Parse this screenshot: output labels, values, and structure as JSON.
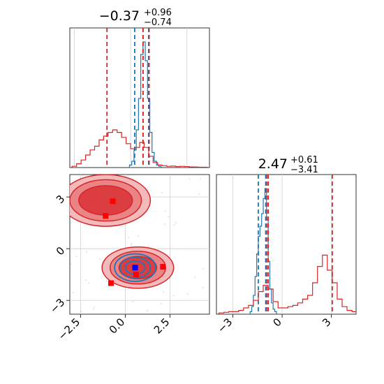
{
  "chart_data": [
    {
      "panel": "top-left",
      "type": "histogram",
      "title": {
        "main": "−0.37",
        "sup": "+0.96",
        "sub": "−0.74"
      },
      "xlim": [
        -2.7,
        3.5
      ],
      "colors": {
        "blue": "#1f77b4",
        "red": "#d62728"
      },
      "series": [
        {
          "color": "blue",
          "bins": [
            [
              0.0,
              0.02
            ],
            [
              0.1,
              0.05
            ],
            [
              0.2,
              0.14
            ],
            [
              0.3,
              0.3
            ],
            [
              0.4,
              0.55
            ],
            [
              0.5,
              0.9
            ],
            [
              0.6,
              1.0
            ],
            [
              0.7,
              0.85
            ],
            [
              0.8,
              0.55
            ],
            [
              0.9,
              0.28
            ],
            [
              1.0,
              0.12
            ],
            [
              1.1,
              0.05
            ],
            [
              1.2,
              0.02
            ],
            [
              1.3,
              0.01
            ]
          ],
          "quantiles": [
            0.18,
            0.55,
            0.8
          ]
        },
        {
          "color": "red",
          "bins": [
            [
              -2.5,
              0.01
            ],
            [
              -2.3,
              0.03
            ],
            [
              -2.1,
              0.06
            ],
            [
              -1.9,
              0.1
            ],
            [
              -1.7,
              0.14
            ],
            [
              -1.5,
              0.17
            ],
            [
              -1.3,
              0.22
            ],
            [
              -1.1,
              0.25
            ],
            [
              -0.9,
              0.28
            ],
            [
              -0.7,
              0.3
            ],
            [
              -0.5,
              0.28
            ],
            [
              -0.3,
              0.24
            ],
            [
              -0.1,
              0.19
            ],
            [
              0.1,
              0.15
            ],
            [
              0.3,
              0.16
            ],
            [
              0.5,
              0.2
            ],
            [
              0.7,
              0.16
            ],
            [
              0.9,
              0.09
            ],
            [
              1.1,
              0.04
            ],
            [
              1.3,
              0.02
            ],
            [
              1.5,
              0.015
            ],
            [
              1.7,
              0.01
            ],
            [
              1.9,
              0.012
            ],
            [
              2.1,
              0.008
            ],
            [
              2.3,
              0.01
            ],
            [
              2.5,
              0.008
            ],
            [
              2.7,
              0.005
            ],
            [
              2.9,
              0.004
            ],
            [
              3.1,
              0.003
            ],
            [
              3.3,
              0.003
            ]
          ],
          "quantiles": [
            -1.05,
            0.55,
            0.82
          ]
        }
      ]
    },
    {
      "panel": "bottom-right",
      "type": "histogram",
      "title": {
        "main": "2.47",
        "sup": "+0.61",
        "sub": "−3.41"
      },
      "xlim": [
        -4.0,
        4.5
      ],
      "xticks": [
        "−3",
        "0",
        "3"
      ],
      "series": [
        {
          "color": "blue",
          "bins": [
            [
              -1.9,
              0.02
            ],
            [
              -1.8,
              0.06
            ],
            [
              -1.7,
              0.15
            ],
            [
              -1.6,
              0.3
            ],
            [
              -1.5,
              0.48
            ],
            [
              -1.4,
              0.62
            ],
            [
              -1.3,
              0.7
            ],
            [
              -1.2,
              0.8
            ],
            [
              -1.1,
              0.92
            ],
            [
              -1.0,
              1.0
            ],
            [
              -0.9,
              0.75
            ],
            [
              -0.8,
              0.42
            ],
            [
              -0.7,
              0.2
            ],
            [
              -0.6,
              0.09
            ],
            [
              -0.5,
              0.04
            ],
            [
              -0.4,
              0.02
            ]
          ],
          "quantiles": [
            -1.45,
            -1.0,
            -0.85
          ]
        },
        {
          "color": "red",
          "bins": [
            [
              -3.7,
              0.01
            ],
            [
              -3.4,
              0.015
            ],
            [
              -3.1,
              0.02
            ],
            [
              -2.8,
              0.02
            ],
            [
              -2.5,
              0.03
            ],
            [
              -2.2,
              0.05
            ],
            [
              -1.9,
              0.07
            ],
            [
              -1.6,
              0.11
            ],
            [
              -1.3,
              0.18
            ],
            [
              -1.0,
              0.23
            ],
            [
              -0.7,
              0.2
            ],
            [
              -0.4,
              0.1
            ],
            [
              -0.1,
              0.05
            ],
            [
              0.2,
              0.05
            ],
            [
              0.5,
              0.06
            ],
            [
              0.8,
              0.07
            ],
            [
              1.1,
              0.09
            ],
            [
              1.4,
              0.12
            ],
            [
              1.7,
              0.15
            ],
            [
              2.0,
              0.25
            ],
            [
              2.3,
              0.38
            ],
            [
              2.6,
              0.47
            ],
            [
              2.9,
              0.35
            ],
            [
              3.2,
              0.25
            ],
            [
              3.5,
              0.12
            ],
            [
              3.8,
              0.06
            ],
            [
              4.1,
              0.03
            ],
            [
              4.4,
              0.02
            ]
          ],
          "quantiles": [
            -0.95,
            -0.85,
            3.05
          ]
        }
      ]
    },
    {
      "panel": "bottom-left",
      "type": "contour",
      "xlim": [
        -3.1,
        4.7
      ],
      "ylim": [
        -3.8,
        4.3
      ],
      "xticks": [
        "−2.5",
        "0.0",
        "2.5"
      ],
      "yticks": [
        "−3",
        "0",
        "3"
      ],
      "red_modes": [
        {
          "cx": -1.1,
          "cy": 2.8,
          "rx": [
            2.5,
            2.0,
            1.5
          ],
          "ry": [
            1.5,
            1.2,
            0.85
          ]
        },
        {
          "cx": 0.7,
          "cy": -1.1,
          "rx": [
            2.0,
            1.55,
            1.05
          ],
          "ry": [
            1.2,
            0.95,
            0.65
          ]
        }
      ],
      "blue_mode": {
        "cx": 0.55,
        "cy": -1.1,
        "rx": [
          1.15,
          0.85,
          0.55
        ],
        "ry": [
          0.8,
          0.6,
          0.38
        ]
      },
      "red_markers": [
        [
          -0.7,
          2.75
        ],
        [
          -1.1,
          1.9
        ],
        [
          -0.8,
          -2.0
        ],
        [
          0.6,
          -1.5
        ],
        [
          2.1,
          -1.05
        ],
        [
          0.55,
          -1.1
        ]
      ],
      "blue_marker": [
        0.55,
        -1.1
      ]
    }
  ]
}
